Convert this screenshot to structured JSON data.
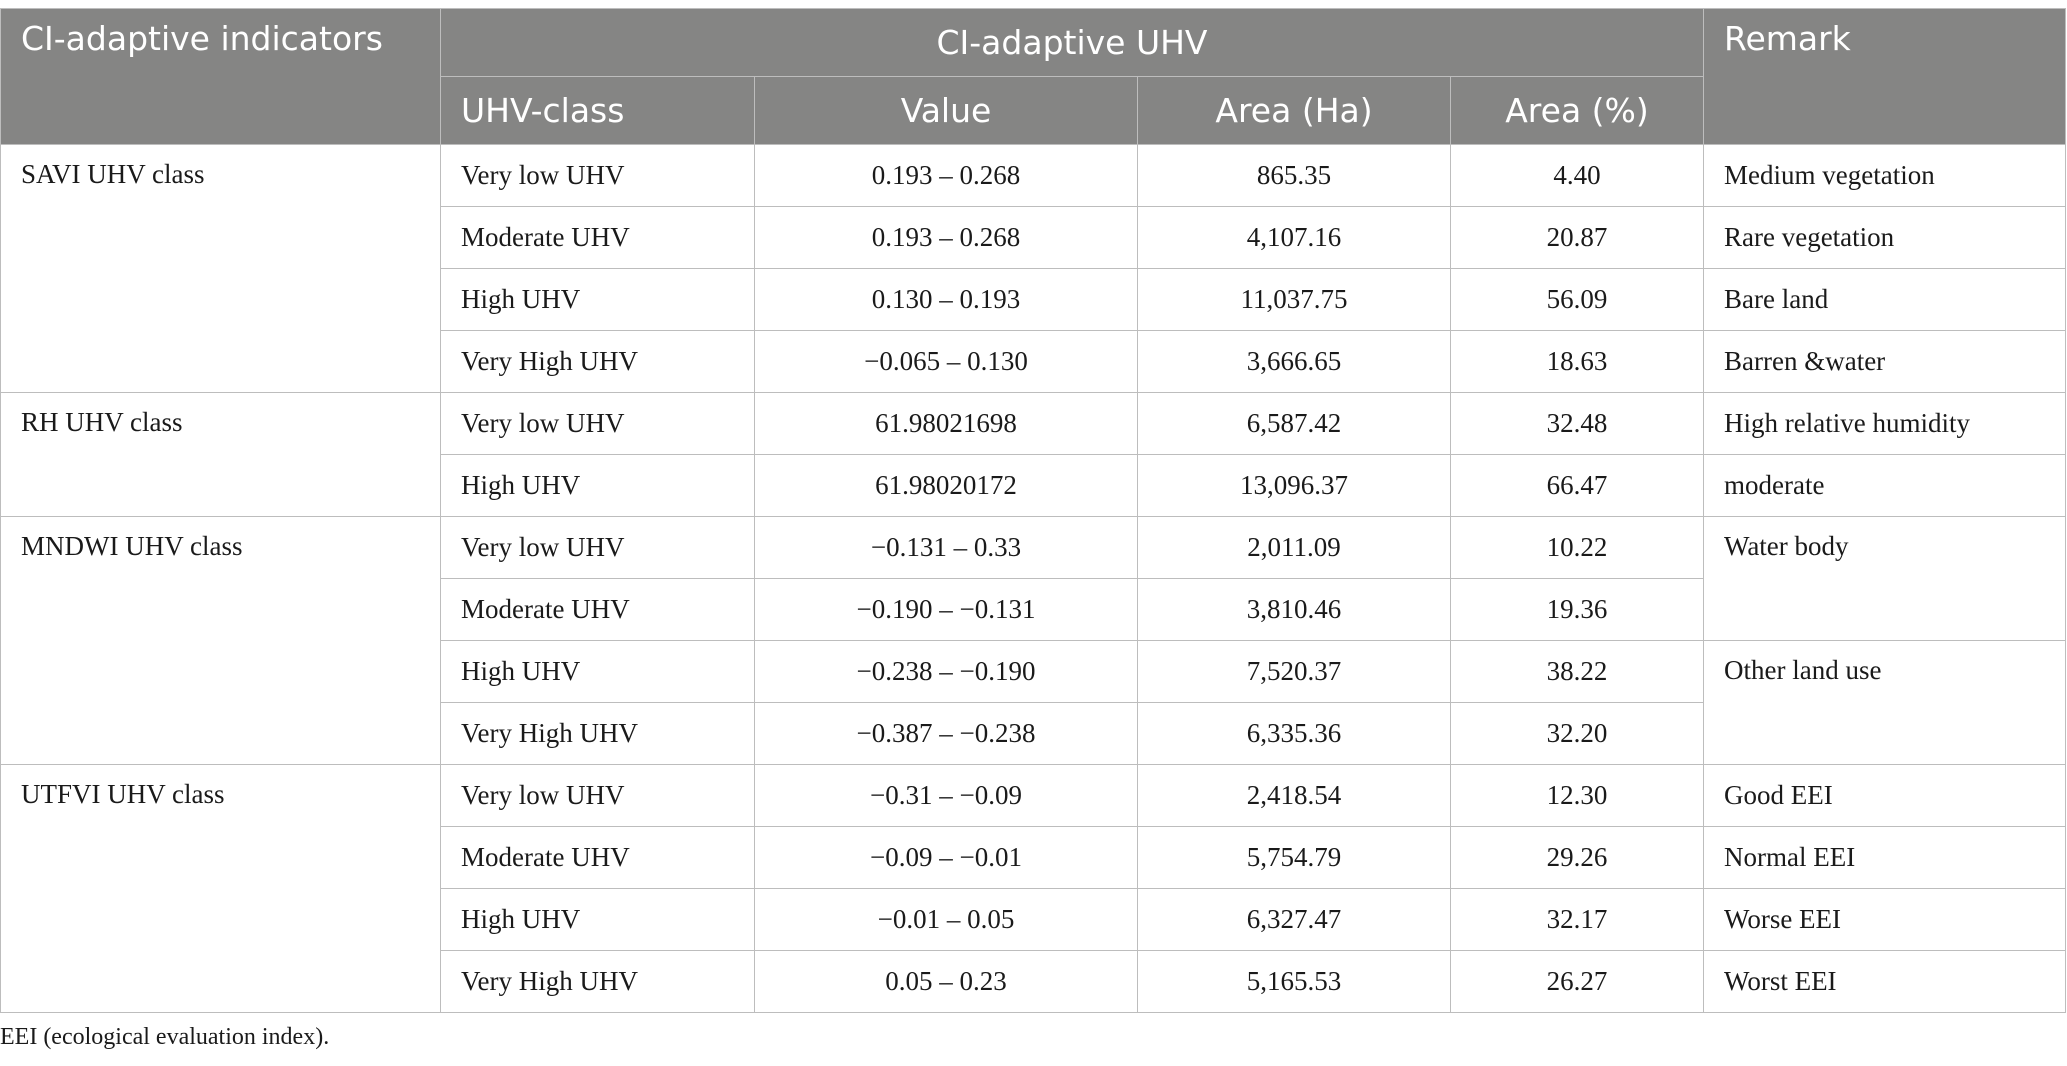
{
  "header": {
    "indicators": "CI-adaptive indicators",
    "group": "CI-adaptive UHV",
    "remark": "Remark",
    "class": "UHV-class",
    "value": "Value",
    "area_ha": "Area (Ha)",
    "area_pct": "Area (%)"
  },
  "groups": [
    {
      "indicator": "SAVI UHV class",
      "rows": [
        {
          "class": "Very low UHV",
          "value": "0.193 – 0.268",
          "area_ha": "865.35",
          "area_pct": "4.40",
          "remark": "Medium vegetation"
        },
        {
          "class": "Moderate UHV",
          "value": "0.193 – 0.268",
          "area_ha": "4,107.16",
          "area_pct": "20.87",
          "remark": "Rare vegetation"
        },
        {
          "class": "High UHV",
          "value": "0.130 – 0.193",
          "area_ha": "11,037.75",
          "area_pct": "56.09",
          "remark": "Bare land"
        },
        {
          "class": "Very High UHV",
          "value": "−0.065 – 0.130",
          "area_ha": "3,666.65",
          "area_pct": "18.63",
          "remark": "Barren &water"
        }
      ]
    },
    {
      "indicator": "RH UHV class",
      "rows": [
        {
          "class": "Very low UHV",
          "value": "61.98021698",
          "area_ha": "6,587.42",
          "area_pct": "32.48",
          "remark": "High relative humidity"
        },
        {
          "class": "High UHV",
          "value": "61.98020172",
          "area_ha": "13,096.37",
          "area_pct": "66.47",
          "remark": "moderate"
        }
      ]
    },
    {
      "indicator": "MNDWI UHV class",
      "rows": [
        {
          "class": "Very low UHV",
          "value": "−0.131 – 0.33",
          "area_ha": "2,011.09",
          "area_pct": "10.22"
        },
        {
          "class": "Moderate UHV",
          "value": "−0.190 – −0.131",
          "area_ha": "3,810.46",
          "area_pct": "19.36"
        },
        {
          "class": "High UHV",
          "value": "−0.238 – −0.190",
          "area_ha": "7,520.37",
          "area_pct": "38.22"
        },
        {
          "class": "Very High UHV",
          "value": "−0.387 – −0.238",
          "area_ha": "6,335.36",
          "area_pct": "32.20"
        }
      ],
      "remarks": [
        "Water body",
        "Other land use"
      ]
    },
    {
      "indicator": "UTFVI UHV class",
      "rows": [
        {
          "class": "Very low UHV",
          "value": "−0.31 – −0.09",
          "area_ha": "2,418.54",
          "area_pct": "12.30",
          "remark": "Good EEI"
        },
        {
          "class": "Moderate UHV",
          "value": "−0.09 – −0.01",
          "area_ha": "5,754.79",
          "area_pct": "29.26",
          "remark": "Normal EEI"
        },
        {
          "class": "High UHV",
          "value": "−0.01 – 0.05",
          "area_ha": "6,327.47",
          "area_pct": "32.17",
          "remark": "Worse EEI"
        },
        {
          "class": "Very High UHV",
          "value": "0.05 – 0.23",
          "area_ha": "5,165.53",
          "area_pct": "26.27",
          "remark": "Worst EEI"
        }
      ]
    }
  ],
  "footnote": "EEI (ecological evaluation index)."
}
